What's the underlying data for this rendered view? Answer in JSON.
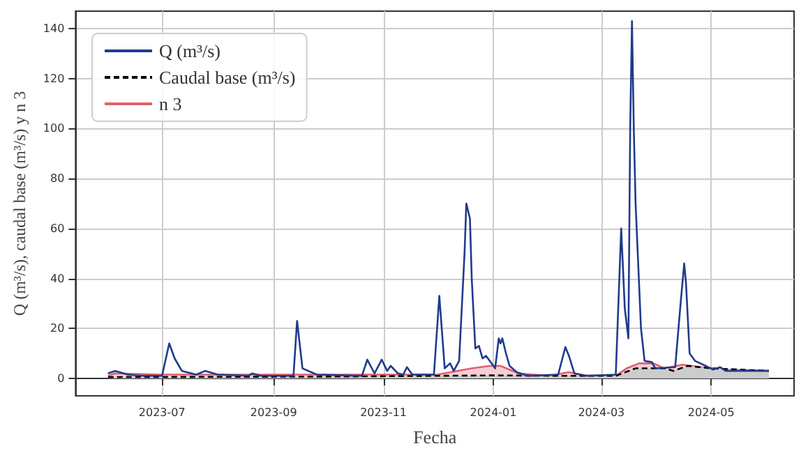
{
  "chart_data": {
    "type": "line",
    "xlabel": "Fecha",
    "ylabel": "Q (m³/s), caudal base (m³/s) y n 3",
    "xlim": [
      "2023-05-14",
      "2024-06-16"
    ],
    "xticks": [
      "2023-07",
      "2023-09",
      "2023-11",
      "2024-01",
      "2024-03",
      "2024-05"
    ],
    "ylim": [
      -7,
      147
    ],
    "yticks": [
      0,
      20,
      40,
      60,
      80,
      100,
      120,
      140
    ],
    "grid": true,
    "legend": "top left",
    "marker": "none",
    "series": [
      {
        "name": "Q (m³/s)",
        "color": "#1f3b8c",
        "x": [
          "2023-06-01",
          "2023-06-05",
          "2023-06-12",
          "2023-06-20",
          "2023-07-01",
          "2023-07-05",
          "2023-07-08",
          "2023-07-12",
          "2023-07-20",
          "2023-07-25",
          "2023-08-01",
          "2023-08-18",
          "2023-08-20",
          "2023-08-25",
          "2023-09-12",
          "2023-09-14",
          "2023-09-17",
          "2023-09-25",
          "2023-10-20",
          "2023-10-23",
          "2023-10-27",
          "2023-10-31",
          "2023-11-03",
          "2023-11-05",
          "2023-11-09",
          "2023-11-12",
          "2023-11-14",
          "2023-11-17",
          "2023-11-29",
          "2023-12-02",
          "2023-12-05",
          "2023-12-08",
          "2023-12-10",
          "2023-12-13",
          "2023-12-16",
          "2023-12-17",
          "2023-12-19",
          "2023-12-20",
          "2023-12-22",
          "2023-12-24",
          "2023-12-26",
          "2023-12-28",
          "2023-12-30",
          "2024-01-02",
          "2024-01-04",
          "2024-01-05",
          "2024-01-06",
          "2024-01-08",
          "2024-01-10",
          "2024-01-14",
          "2024-01-20",
          "2024-02-06",
          "2024-02-10",
          "2024-02-12",
          "2024-02-15",
          "2024-02-22",
          "2024-03-09",
          "2024-03-12",
          "2024-03-14",
          "2024-03-16",
          "2024-03-17",
          "2024-03-18",
          "2024-03-19",
          "2024-03-20",
          "2024-03-23",
          "2024-03-25",
          "2024-03-29",
          "2024-03-31",
          "2024-04-11",
          "2024-04-14",
          "2024-04-16",
          "2024-04-17",
          "2024-04-19",
          "2024-04-22",
          "2024-04-28",
          "2024-05-02",
          "2024-05-06",
          "2024-05-09",
          "2024-06-02"
        ],
        "values": [
          2,
          3,
          1.5,
          1,
          1,
          14,
          8,
          3,
          1.5,
          3,
          1.5,
          1,
          2,
          1,
          1,
          23,
          4,
          1.5,
          1,
          7.5,
          2,
          7.5,
          3,
          5,
          2,
          1.5,
          4.5,
          1.5,
          1.5,
          33,
          4,
          6,
          3,
          7,
          50,
          70,
          64,
          40,
          12,
          13,
          8,
          9,
          7,
          4,
          16,
          14,
          16,
          10,
          5,
          2.5,
          1,
          1.5,
          12.5,
          9,
          2,
          1,
          1.5,
          60,
          28,
          16,
          100,
          143,
          100,
          70,
          20,
          7,
          6.5,
          4,
          4.5,
          30,
          46,
          38,
          10,
          7,
          5,
          3.5,
          4.5,
          3,
          3
        ]
      },
      {
        "name": "Caudal base (m³/s)",
        "type": "area",
        "color": "#000000",
        "line_style": "dashed",
        "x": [
          "2023-06-01",
          "2023-10-01",
          "2024-01-01",
          "2024-02-15",
          "2024-03-09",
          "2024-03-20",
          "2024-04-05",
          "2024-04-10",
          "2024-04-18",
          "2024-05-01",
          "2024-06-02"
        ],
        "values": [
          0.5,
          0.7,
          1.2,
          1,
          1,
          4,
          4,
          3,
          5,
          4,
          3
        ]
      },
      {
        "name": "n 3",
        "type": "area",
        "color": "#e0606e",
        "x": [
          "2023-06-01",
          "2023-06-05",
          "2023-07-01",
          "2023-10-01",
          "2023-12-01",
          "2023-12-20",
          "2023-12-30",
          "2024-01-05",
          "2024-01-15",
          "2024-02-01",
          "2024-02-12",
          "2024-02-20",
          "2024-03-09",
          "2024-03-15",
          "2024-03-22",
          "2024-03-30",
          "2024-04-05",
          "2024-04-15",
          "2024-04-25",
          "2024-05-10",
          "2024-06-02"
        ],
        "values": [
          1,
          2,
          1.5,
          1.5,
          1.5,
          4,
          5,
          5,
          2,
          1,
          2.5,
          1.2,
          1,
          4,
          6,
          6,
          4,
          5.5,
          4.5,
          3.5,
          3
        ]
      }
    ]
  }
}
